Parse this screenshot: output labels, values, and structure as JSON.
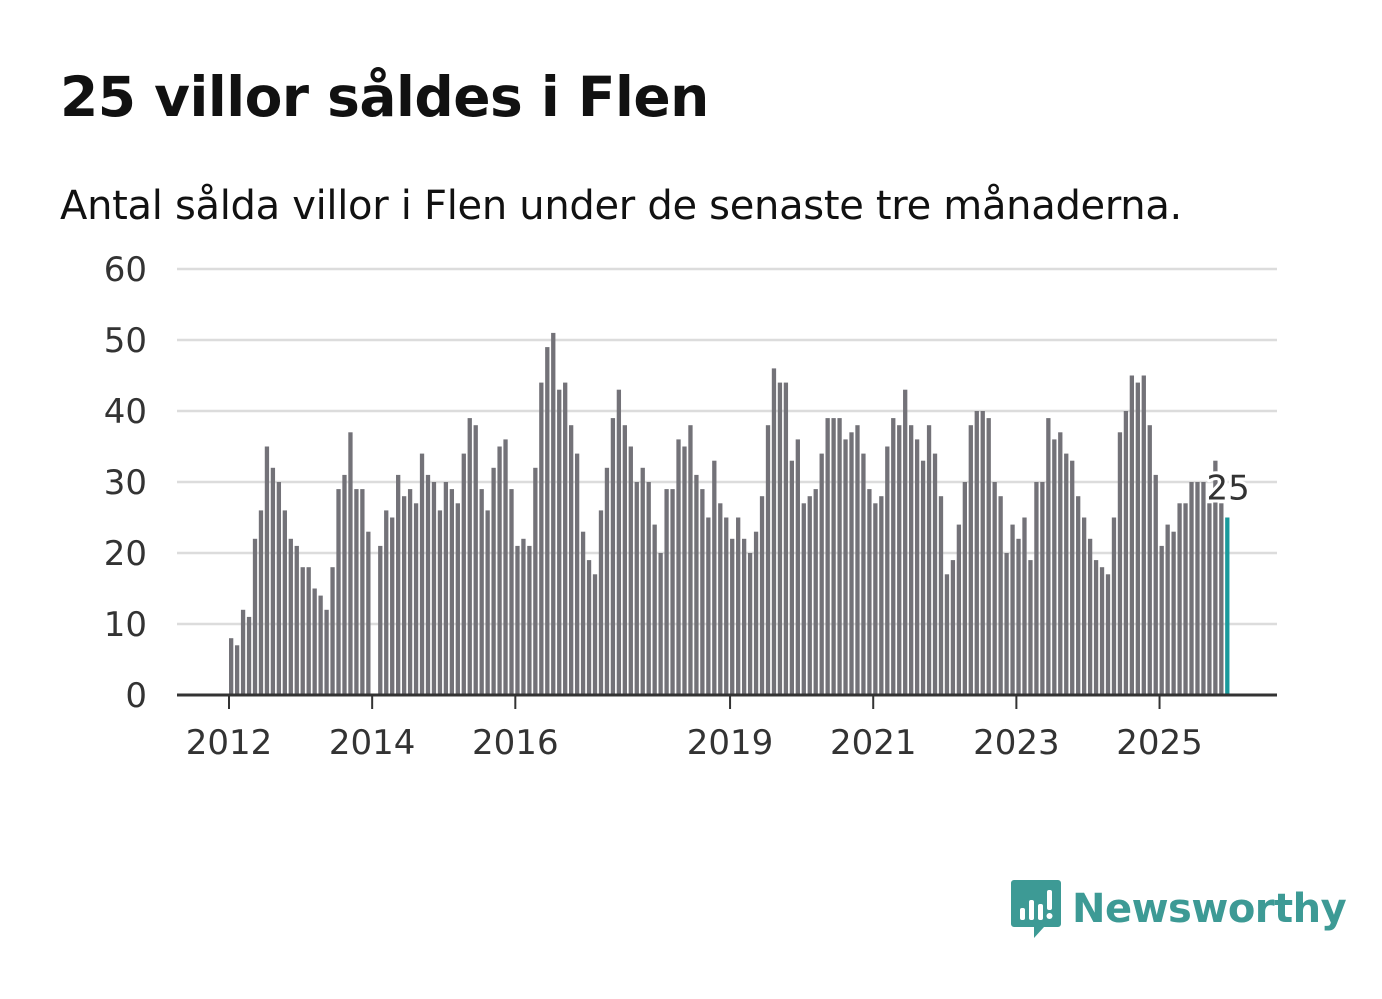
{
  "title": "25 villor såldes i Flen",
  "subtitle": "Antal sålda villor i Flen under de senaste tre månaderna.",
  "brand": {
    "name": "Newsworthy",
    "color": "#3d9a95",
    "icon": "newsworthy-chart-icon"
  },
  "colors": {
    "bar": "#737278",
    "highlight": "#1a9a9c",
    "grid": "#dcdcdc",
    "axis": "#333333"
  },
  "chart_data": {
    "type": "bar",
    "title": "25 villor såldes i Flen",
    "xlabel": "",
    "ylabel": "",
    "ylim": [
      0,
      60
    ],
    "yticks": [
      "0",
      "10",
      "20",
      "30",
      "40",
      "50",
      "60"
    ],
    "xticks": [
      {
        "label": "2012",
        "index": 0
      },
      {
        "label": "2014",
        "index": 24
      },
      {
        "label": "2016",
        "index": 48
      },
      {
        "label": "2019",
        "index": 84
      },
      {
        "label": "2021",
        "index": 108
      },
      {
        "label": "2023",
        "index": 132
      },
      {
        "label": "2025",
        "index": 156
      }
    ],
    "first_period": "2012-01",
    "last_period": "2025-11",
    "values": [
      8,
      7,
      12,
      11,
      22,
      26,
      35,
      32,
      30,
      26,
      22,
      21,
      18,
      18,
      15,
      14,
      12,
      18,
      29,
      31,
      37,
      29,
      29,
      23,
      0,
      21,
      26,
      25,
      31,
      28,
      29,
      27,
      34,
      31,
      30,
      26,
      30,
      29,
      27,
      34,
      39,
      38,
      29,
      26,
      32,
      35,
      36,
      29,
      21,
      22,
      21,
      32,
      44,
      49,
      51,
      43,
      44,
      38,
      34,
      23,
      19,
      17,
      26,
      32,
      39,
      43,
      38,
      35,
      30,
      32,
      30,
      24,
      20,
      29,
      29,
      36,
      35,
      38,
      31,
      29,
      25,
      33,
      27,
      25,
      22,
      25,
      22,
      20,
      23,
      28,
      38,
      46,
      44,
      44,
      33,
      36,
      27,
      28,
      29,
      34,
      39,
      39,
      39,
      36,
      37,
      38,
      34,
      29,
      27,
      28,
      35,
      39,
      38,
      43,
      38,
      36,
      33,
      38,
      34,
      28,
      17,
      19,
      24,
      30,
      38,
      40,
      40,
      39,
      30,
      28,
      20,
      24,
      22,
      25,
      19,
      30,
      30,
      39,
      36,
      37,
      34,
      33,
      28,
      25,
      22,
      19,
      18,
      17,
      25,
      37,
      40,
      45,
      44,
      45,
      38,
      31,
      21,
      24,
      23,
      27,
      27,
      30,
      30,
      30,
      27,
      33,
      27,
      25
    ],
    "highlight_index": 167,
    "annotation": "25"
  }
}
